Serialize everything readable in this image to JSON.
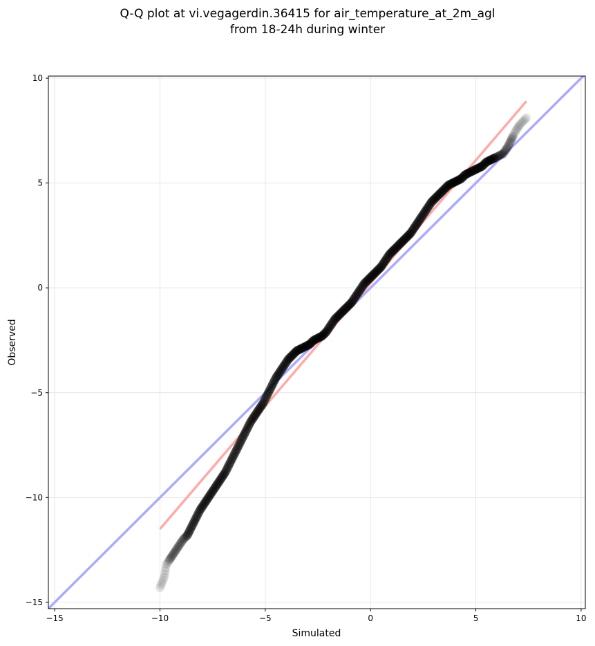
{
  "chart_data": {
    "type": "scatter",
    "title_lines": [
      "Q-Q plot at vi.vegagerdin.36415 for air_temperature_at_2m_agl",
      "from 18-24h during winter"
    ],
    "xlabel": "Simulated",
    "ylabel": "Observed",
    "xlim": [
      -15.3,
      10.2
    ],
    "ylim": [
      -15.3,
      10.1
    ],
    "xticks": [
      -15,
      -10,
      -5,
      0,
      5,
      10
    ],
    "yticks": [
      -15,
      -10,
      -5,
      0,
      5,
      10
    ],
    "xtick_labels": [
      "−15",
      "−10",
      "−5",
      "0",
      "5",
      "10"
    ],
    "ytick_labels": [
      "−15",
      "−10",
      "−5",
      "0",
      "5",
      "10"
    ],
    "grid": true,
    "reference_line": {
      "label": "1:1 line",
      "color": "#aaaaff",
      "x": [
        -15.3,
        10.2
      ],
      "y": [
        -15.3,
        10.2
      ]
    },
    "fit_line": {
      "color": "#ffaaaa",
      "x": [
        -10,
        7.4
      ],
      "y": [
        -11.5,
        8.9
      ]
    },
    "colors": {
      "points": "#000000",
      "axes": "#000000",
      "grid": "#e6e6e6"
    },
    "series": [
      {
        "quantiles": [
          [
            -10.0,
            -14.3
          ],
          [
            -9.8,
            -13.8
          ],
          [
            -9.7,
            -13.2
          ],
          [
            -9.5,
            -12.9
          ],
          [
            -9.3,
            -12.6
          ],
          [
            -9.1,
            -12.3
          ],
          [
            -8.9,
            -12.0
          ],
          [
            -8.7,
            -11.8
          ],
          [
            -8.5,
            -11.4
          ],
          [
            -8.3,
            -11.0
          ],
          [
            -8.1,
            -10.6
          ],
          [
            -7.9,
            -10.3
          ],
          [
            -7.7,
            -10.0
          ],
          [
            -7.5,
            -9.7
          ],
          [
            -7.3,
            -9.4
          ],
          [
            -7.1,
            -9.1
          ],
          [
            -6.9,
            -8.8
          ],
          [
            -6.7,
            -8.4
          ],
          [
            -6.5,
            -8.0
          ],
          [
            -6.3,
            -7.6
          ],
          [
            -6.1,
            -7.2
          ],
          [
            -5.9,
            -6.8
          ],
          [
            -5.7,
            -6.4
          ],
          [
            -5.5,
            -6.1
          ],
          [
            -5.3,
            -5.8
          ],
          [
            -5.1,
            -5.5
          ],
          [
            -4.9,
            -5.1
          ],
          [
            -4.7,
            -4.7
          ],
          [
            -4.5,
            -4.3
          ],
          [
            -4.3,
            -4.0
          ],
          [
            -4.1,
            -3.7
          ],
          [
            -3.9,
            -3.4
          ],
          [
            -3.7,
            -3.2
          ],
          [
            -3.5,
            -3.0
          ],
          [
            -3.3,
            -2.9
          ],
          [
            -3.1,
            -2.8
          ],
          [
            -2.9,
            -2.7
          ],
          [
            -2.7,
            -2.5
          ],
          [
            -2.5,
            -2.4
          ],
          [
            -2.3,
            -2.3
          ],
          [
            -2.1,
            -2.1
          ],
          [
            -1.9,
            -1.8
          ],
          [
            -1.7,
            -1.5
          ],
          [
            -1.5,
            -1.3
          ],
          [
            -1.3,
            -1.1
          ],
          [
            -1.1,
            -0.9
          ],
          [
            -0.9,
            -0.7
          ],
          [
            -0.7,
            -0.4
          ],
          [
            -0.5,
            -0.1
          ],
          [
            -0.3,
            0.2
          ],
          [
            -0.1,
            0.4
          ],
          [
            0.1,
            0.6
          ],
          [
            0.3,
            0.8
          ],
          [
            0.5,
            1.0
          ],
          [
            0.7,
            1.3
          ],
          [
            0.9,
            1.6
          ],
          [
            1.1,
            1.8
          ],
          [
            1.3,
            2.0
          ],
          [
            1.5,
            2.2
          ],
          [
            1.7,
            2.4
          ],
          [
            1.9,
            2.6
          ],
          [
            2.1,
            2.9
          ],
          [
            2.3,
            3.2
          ],
          [
            2.5,
            3.5
          ],
          [
            2.7,
            3.8
          ],
          [
            2.9,
            4.1
          ],
          [
            3.1,
            4.3
          ],
          [
            3.3,
            4.5
          ],
          [
            3.5,
            4.7
          ],
          [
            3.7,
            4.9
          ],
          [
            3.9,
            5.0
          ],
          [
            4.1,
            5.1
          ],
          [
            4.3,
            5.2
          ],
          [
            4.5,
            5.4
          ],
          [
            4.7,
            5.5
          ],
          [
            4.9,
            5.6
          ],
          [
            5.1,
            5.7
          ],
          [
            5.3,
            5.8
          ],
          [
            5.5,
            6.0
          ],
          [
            5.7,
            6.1
          ],
          [
            5.9,
            6.2
          ],
          [
            6.1,
            6.3
          ],
          [
            6.3,
            6.4
          ],
          [
            6.5,
            6.7
          ],
          [
            6.7,
            7.1
          ],
          [
            6.9,
            7.5
          ],
          [
            7.1,
            7.8
          ],
          [
            7.4,
            8.1
          ]
        ]
      }
    ]
  }
}
